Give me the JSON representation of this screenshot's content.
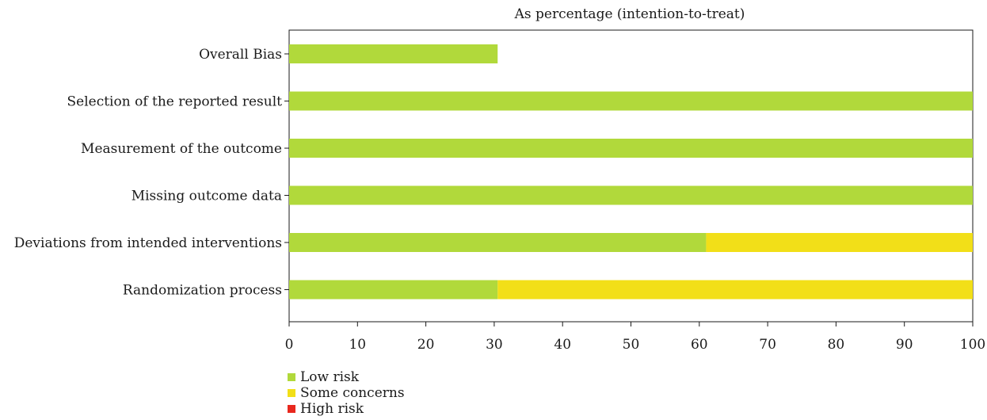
{
  "chart_data": {
    "type": "bar",
    "stacked": true,
    "orientation": "horizontal",
    "title": "As percentage (intention-to-treat)",
    "categories": [
      "Overall Bias",
      "Selection of the reported result",
      "Measurement of the outcome",
      "Missing outcome data",
      "Deviations from intended interventions",
      "Randomization process"
    ],
    "series": [
      {
        "name": "Low risk",
        "color": "#b1d93b",
        "values": [
          30.5,
          100,
          100,
          100,
          61,
          30.5
        ]
      },
      {
        "name": "Some concerns",
        "color": "#f2df18",
        "values": [
          0,
          0,
          0,
          0,
          39,
          69.5
        ]
      },
      {
        "name": "High risk",
        "color": "#e8281e",
        "values": [
          0,
          0,
          0,
          0,
          0,
          0
        ]
      }
    ],
    "xlim": [
      0,
      100
    ],
    "xticks": [
      "0",
      "10",
      "20",
      "30",
      "40",
      "50",
      "60",
      "70",
      "80",
      "90",
      "100"
    ],
    "grid": false,
    "legend_position": "bottom-left"
  }
}
